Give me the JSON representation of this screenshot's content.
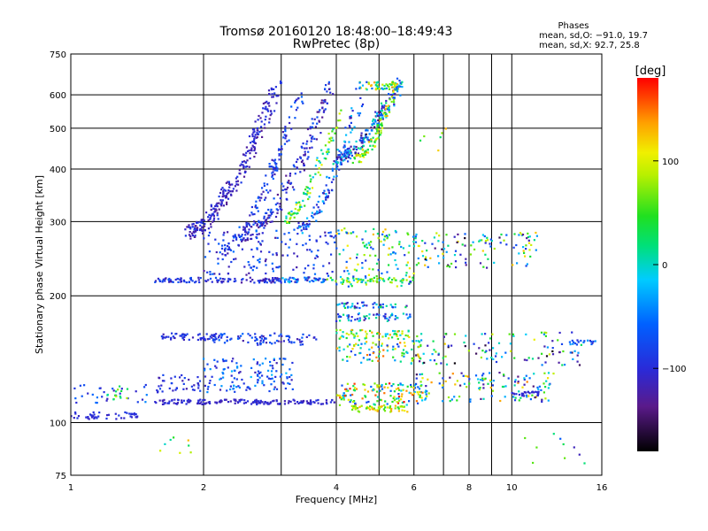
{
  "chart_data": {
    "type": "scatter",
    "title": "Tromsø 20160120 18:48:00–18:49:43",
    "subtitle": "RwPretec (8p)",
    "xlabel": "Frequency [MHz]",
    "ylabel": "Stationary phase Virtual Height [km]",
    "x_scale": "log",
    "y_scale": "log",
    "xlim": [
      1,
      16
    ],
    "ylim": [
      75,
      750
    ],
    "grid": true,
    "xticks": [
      1,
      2,
      4,
      6,
      8,
      10,
      16
    ],
    "xticklabels": [
      "1",
      "2",
      "4",
      "6",
      "8",
      "10",
      "16"
    ],
    "xminor": [
      3,
      5,
      7,
      9
    ],
    "yticks": [
      75,
      100,
      200,
      300,
      400,
      500,
      600,
      750
    ],
    "yticklabels": [
      "75",
      "100",
      "200",
      "300",
      "400",
      "500",
      "600",
      "750"
    ],
    "legend": {
      "title": "Phases",
      "lines": [
        "mean, sd,O: −91.0, 19.7",
        "mean, sd,X:  92.7, 25.8"
      ]
    },
    "colorbar": {
      "label": "[deg]",
      "range": [
        -180,
        180
      ],
      "ticks": [
        100,
        0,
        -100
      ],
      "ticklabels": [
        "100",
        "0",
        "−100"
      ],
      "colormap": "rainbow (black → purple → blue → cyan → green → yellow → orange → red)"
    },
    "series": [
      {
        "kind": "band",
        "x": [
          1.0,
          1.42
        ],
        "y": 104,
        "dy": 2,
        "n": 45,
        "phase": -100,
        "dphase": 12
      },
      {
        "kind": "band",
        "x": [
          1.0,
          1.5
        ],
        "y": 117,
        "dy": 6,
        "n": 30,
        "phase": -80,
        "dphase": 40
      },
      {
        "kind": "band",
        "x": [
          1.2,
          1.35
        ],
        "y": 118,
        "dy": 5,
        "n": 14,
        "phase": 40,
        "dphase": 50
      },
      {
        "kind": "band",
        "x": [
          1.55,
          2.0
        ],
        "y": 124,
        "dy": 6,
        "n": 40,
        "phase": -100,
        "dphase": 25
      },
      {
        "kind": "band",
        "x": [
          1.55,
          4.0
        ],
        "y": 112,
        "dy": 1.5,
        "n": 160,
        "phase": -105,
        "dphase": 15
      },
      {
        "kind": "band",
        "x": [
          1.6,
          2.15
        ],
        "y": 160,
        "dy": 3,
        "n": 55,
        "phase": -100,
        "dphase": 20
      },
      {
        "kind": "band",
        "x": [
          2.0,
          3.2
        ],
        "y": 130,
        "dy": 12,
        "n": 130,
        "phase": -70,
        "dphase": 50
      },
      {
        "kind": "band",
        "x": [
          2.1,
          3.6
        ],
        "y": 158,
        "dy": 5,
        "n": 90,
        "phase": -90,
        "dphase": 35
      },
      {
        "kind": "band",
        "x": [
          1.55,
          3.0
        ],
        "y": 218,
        "dy": 3,
        "n": 110,
        "phase": -100,
        "dphase": 30
      },
      {
        "kind": "band",
        "x": [
          3.0,
          3.8
        ],
        "y": 218,
        "dy": 3,
        "n": 45,
        "phase": -60,
        "dphase": 60
      },
      {
        "kind": "band",
        "x": [
          2.0,
          4.0
        ],
        "y": 255,
        "dy": 35,
        "n": 140,
        "phase": -90,
        "dphase": 40
      },
      {
        "kind": "band",
        "x": [
          3.8,
          6.0
        ],
        "y": 218,
        "dy": 3,
        "n": 60,
        "phase": 40,
        "dphase": 60
      },
      {
        "kind": "band",
        "x": [
          4.0,
          6.0
        ],
        "y": 250,
        "dy": 40,
        "n": 120,
        "phase": 20,
        "dphase": 120
      },
      {
        "kind": "band",
        "x": [
          4.0,
          5.8
        ],
        "y": 190,
        "dy": 3,
        "n": 45,
        "phase": -40,
        "dphase": 90
      },
      {
        "kind": "band",
        "x": [
          4.0,
          5.9
        ],
        "y": 178,
        "dy": 4,
        "n": 55,
        "phase": -60,
        "dphase": 80
      },
      {
        "kind": "band",
        "x": [
          4.0,
          6.0
        ],
        "y": 162,
        "dy": 4,
        "n": 60,
        "phase": 60,
        "dphase": 80
      },
      {
        "kind": "band",
        "x": [
          4.0,
          6.3
        ],
        "y": 148,
        "dy": 10,
        "n": 90,
        "phase": 30,
        "dphase": 120
      },
      {
        "kind": "band",
        "x": [
          4.0,
          6.5
        ],
        "y": 117,
        "dy": 7,
        "n": 140,
        "phase": 50,
        "dphase": 130
      },
      {
        "kind": "band",
        "x": [
          4.3,
          5.8
        ],
        "y": 108,
        "dy": 2,
        "n": 60,
        "phase": 90,
        "dphase": 50
      },
      {
        "kind": "band",
        "x": [
          6.0,
          14.5
        ],
        "y": 150,
        "dy": 14,
        "n": 110,
        "phase": -30,
        "dphase": 150
      },
      {
        "kind": "band",
        "x": [
          6.0,
          12.5
        ],
        "y": 122,
        "dy": 10,
        "n": 130,
        "phase": 0,
        "dphase": 150
      },
      {
        "kind": "band",
        "x": [
          6.0,
          11.5
        ],
        "y": 258,
        "dy": 25,
        "n": 120,
        "phase": -20,
        "dphase": 150
      },
      {
        "kind": "band",
        "x": [
          10.0,
          11.5
        ],
        "y": 117,
        "dy": 1.5,
        "n": 25,
        "phase": -105,
        "dphase": 10
      },
      {
        "kind": "band",
        "x": [
          13.5,
          15.5
        ],
        "y": 155,
        "dy": 2,
        "n": 18,
        "phase": -70,
        "dphase": 40
      },
      {
        "kind": "trace",
        "x0": 1.85,
        "x1": 2.95,
        "h0": 283,
        "h1": 640,
        "n": 260,
        "spread": 0.06,
        "phase": -110,
        "dphase": 25
      },
      {
        "kind": "trace",
        "x0": 2.2,
        "x1": 3.3,
        "h0": 255,
        "h1": 600,
        "n": 140,
        "spread": 0.05,
        "phase": -90,
        "dphase": 35
      },
      {
        "kind": "trace",
        "x0": 2.5,
        "x1": 3.9,
        "h0": 280,
        "h1": 640,
        "n": 170,
        "spread": 0.06,
        "phase": -100,
        "dphase": 35
      },
      {
        "kind": "trace",
        "x0": 3.0,
        "x1": 4.1,
        "h0": 300,
        "h1": 560,
        "n": 90,
        "spread": 0.04,
        "phase": 40,
        "dphase": 70
      },
      {
        "kind": "trace",
        "x0": 3.3,
        "x1": 4.6,
        "h0": 290,
        "h1": 640,
        "n": 120,
        "spread": 0.05,
        "phase": -70,
        "dphase": 60
      },
      {
        "kind": "trace",
        "x0": 4.0,
        "x1": 5.6,
        "h0": 420,
        "h1": 650,
        "n": 180,
        "spread": 0.05,
        "phase": -70,
        "dphase": 90
      },
      {
        "kind": "trace",
        "x0": 4.4,
        "x1": 5.5,
        "h0": 420,
        "h1": 640,
        "n": 90,
        "spread": 0.04,
        "phase": 80,
        "dphase": 60
      },
      {
        "kind": "band",
        "x": [
          4.5,
          5.8
        ],
        "y": 630,
        "dy": 15,
        "n": 50,
        "phase": 40,
        "dphase": 100
      },
      {
        "kind": "band",
        "x": [
          6.0,
          7.5
        ],
        "y": 470,
        "dy": 30,
        "n": 6,
        "phase": 60,
        "dphase": 80
      },
      {
        "kind": "band",
        "x": [
          1.4,
          1.9
        ],
        "y": 88,
        "dy": 5,
        "n": 8,
        "phase": 60,
        "dphase": 80
      },
      {
        "kind": "band",
        "x": [
          10.0,
          15.0
        ],
        "y": 88,
        "dy": 8,
        "n": 10,
        "phase": -40,
        "dphase": 120
      }
    ]
  }
}
